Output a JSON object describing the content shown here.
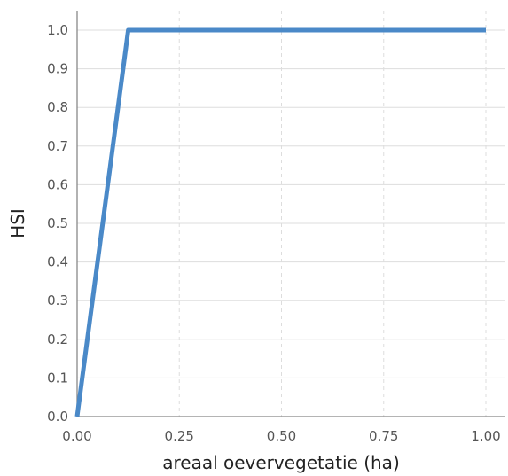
{
  "chart_data": {
    "type": "line",
    "title": "",
    "xlabel": "areaal oevervegetatie (ha)",
    "ylabel": "HSI",
    "xlim": [
      0,
      1
    ],
    "ylim": [
      0,
      1
    ],
    "x_ticks": [
      "0.00",
      "0.25",
      "0.50",
      "0.75",
      "1.00"
    ],
    "y_ticks": [
      "0.0",
      "0.1",
      "0.2",
      "0.3",
      "0.4",
      "0.5",
      "0.6",
      "0.7",
      "0.8",
      "0.9",
      "1.0"
    ],
    "grid": true,
    "series": [
      {
        "color": "#4a89c8",
        "x": [
          0,
          0.125,
          1.0
        ],
        "y": [
          0,
          1.0,
          1.0
        ]
      }
    ]
  }
}
